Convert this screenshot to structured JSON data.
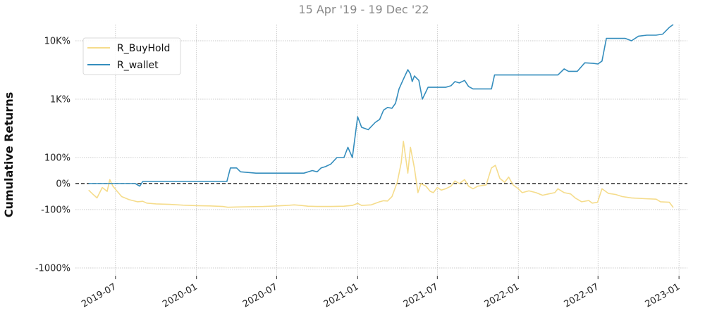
{
  "chart_data": {
    "type": "line",
    "title": "",
    "subtitle": "15 Apr '19 - 19 Dec '22",
    "ylabel": "Cumulative Returns",
    "xlabel": "",
    "y_scale": "symlog",
    "grid": true,
    "legend_position": "top-left",
    "baseline": 0,
    "x_ticks": [
      "2019-07",
      "2020-01",
      "2020-07",
      "2021-01",
      "2021-07",
      "2022-01",
      "2022-07",
      "2023-01"
    ],
    "y_ticks": [
      {
        "value": 10000,
        "label": "10K%"
      },
      {
        "value": 1000,
        "label": "1K%"
      },
      {
        "value": 100,
        "label": "100%"
      },
      {
        "value": 0,
        "label": "0%"
      },
      {
        "value": -100,
        "label": "-100%"
      },
      {
        "value": -1000,
        "label": "-1000%"
      }
    ],
    "series": [
      {
        "name": "R_BuyHold",
        "color": "#f5dc8b",
        "points": [
          [
            "2019-05-01",
            -25
          ],
          [
            "2019-05-10",
            -40
          ],
          [
            "2019-05-20",
            -55
          ],
          [
            "2019-06-01",
            -15
          ],
          [
            "2019-06-12",
            -30
          ],
          [
            "2019-06-18",
            15
          ],
          [
            "2019-06-25",
            -10
          ],
          [
            "2019-07-05",
            -30
          ],
          [
            "2019-07-15",
            -50
          ],
          [
            "2019-08-01",
            -62
          ],
          [
            "2019-08-20",
            -70
          ],
          [
            "2019-09-01",
            -68
          ],
          [
            "2019-09-10",
            -75
          ],
          [
            "2019-10-01",
            -78
          ],
          [
            "2019-11-01",
            -80
          ],
          [
            "2019-12-01",
            -83
          ],
          [
            "2020-01-01",
            -85
          ],
          [
            "2020-02-01",
            -86
          ],
          [
            "2020-03-01",
            -88
          ],
          [
            "2020-03-12",
            -91
          ],
          [
            "2020-04-01",
            -90
          ],
          [
            "2020-05-01",
            -89
          ],
          [
            "2020-06-01",
            -88
          ],
          [
            "2020-07-01",
            -86
          ],
          [
            "2020-07-25",
            -84
          ],
          [
            "2020-08-10",
            -82
          ],
          [
            "2020-08-25",
            -84
          ],
          [
            "2020-09-10",
            -87
          ],
          [
            "2020-10-01",
            -88
          ],
          [
            "2020-11-01",
            -88
          ],
          [
            "2020-12-01",
            -87
          ],
          [
            "2020-12-20",
            -84
          ],
          [
            "2021-01-01",
            -76
          ],
          [
            "2021-01-10",
            -84
          ],
          [
            "2021-02-01",
            -82
          ],
          [
            "2021-02-20",
            -70
          ],
          [
            "2021-03-01",
            -66
          ],
          [
            "2021-03-10",
            -67
          ],
          [
            "2021-03-20",
            -50
          ],
          [
            "2021-04-01",
            5
          ],
          [
            "2021-04-10",
            80
          ],
          [
            "2021-04-15",
            190
          ],
          [
            "2021-04-25",
            40
          ],
          [
            "2021-05-01",
            150
          ],
          [
            "2021-05-10",
            60
          ],
          [
            "2021-05-18",
            -35
          ],
          [
            "2021-05-25",
            0
          ],
          [
            "2021-06-05",
            -10
          ],
          [
            "2021-06-15",
            -30
          ],
          [
            "2021-06-22",
            -35
          ],
          [
            "2021-07-01",
            -15
          ],
          [
            "2021-07-10",
            -25
          ],
          [
            "2021-07-20",
            -20
          ],
          [
            "2021-08-01",
            -10
          ],
          [
            "2021-08-10",
            10
          ],
          [
            "2021-08-20",
            0
          ],
          [
            "2021-09-01",
            15
          ],
          [
            "2021-09-10",
            -10
          ],
          [
            "2021-09-20",
            -20
          ],
          [
            "2021-10-01",
            -10
          ],
          [
            "2021-10-20",
            -5
          ],
          [
            "2021-11-01",
            60
          ],
          [
            "2021-11-10",
            70
          ],
          [
            "2021-11-20",
            20
          ],
          [
            "2021-12-01",
            5
          ],
          [
            "2021-12-10",
            25
          ],
          [
            "2021-12-20",
            -5
          ],
          [
            "2022-01-01",
            -20
          ],
          [
            "2022-01-10",
            -35
          ],
          [
            "2022-01-25",
            -28
          ],
          [
            "2022-02-10",
            -35
          ],
          [
            "2022-02-25",
            -45
          ],
          [
            "2022-03-10",
            -40
          ],
          [
            "2022-03-25",
            -35
          ],
          [
            "2022-04-01",
            -20
          ],
          [
            "2022-04-15",
            -35
          ],
          [
            "2022-04-30",
            -40
          ],
          [
            "2022-05-10",
            -55
          ],
          [
            "2022-05-25",
            -70
          ],
          [
            "2022-06-10",
            -65
          ],
          [
            "2022-06-18",
            -75
          ],
          [
            "2022-06-30",
            -72
          ],
          [
            "2022-07-10",
            -20
          ],
          [
            "2022-07-25",
            -38
          ],
          [
            "2022-08-10",
            -42
          ],
          [
            "2022-08-25",
            -50
          ],
          [
            "2022-09-15",
            -55
          ],
          [
            "2022-10-15",
            -58
          ],
          [
            "2022-11-10",
            -60
          ],
          [
            "2022-11-20",
            -70
          ],
          [
            "2022-12-10",
            -72
          ],
          [
            "2022-12-19",
            -92
          ]
        ]
      },
      {
        "name": "R_wallet",
        "color": "#348dbd",
        "points": [
          [
            "2019-05-01",
            0
          ],
          [
            "2019-07-01",
            0
          ],
          [
            "2019-08-15",
            0
          ],
          [
            "2019-08-25",
            -10
          ],
          [
            "2019-09-01",
            8
          ],
          [
            "2019-11-01",
            8
          ],
          [
            "2020-01-01",
            8
          ],
          [
            "2020-03-01",
            8
          ],
          [
            "2020-03-10",
            8
          ],
          [
            "2020-03-18",
            60
          ],
          [
            "2020-04-01",
            60
          ],
          [
            "2020-04-10",
            45
          ],
          [
            "2020-05-15",
            40
          ],
          [
            "2020-07-01",
            40
          ],
          [
            "2020-08-15",
            40
          ],
          [
            "2020-09-01",
            40
          ],
          [
            "2020-09-20",
            50
          ],
          [
            "2020-10-01",
            45
          ],
          [
            "2020-10-10",
            60
          ],
          [
            "2020-10-20",
            65
          ],
          [
            "2020-11-01",
            75
          ],
          [
            "2020-11-15",
            100
          ],
          [
            "2020-12-01",
            100
          ],
          [
            "2020-12-10",
            150
          ],
          [
            "2020-12-20",
            100
          ],
          [
            "2021-01-01",
            500
          ],
          [
            "2021-01-10",
            330
          ],
          [
            "2021-01-25",
            300
          ],
          [
            "2021-02-10",
            400
          ],
          [
            "2021-02-20",
            450
          ],
          [
            "2021-03-01",
            650
          ],
          [
            "2021-03-10",
            720
          ],
          [
            "2021-03-20",
            700
          ],
          [
            "2021-03-28",
            850
          ],
          [
            "2021-04-05",
            1500
          ],
          [
            "2021-04-15",
            2200
          ],
          [
            "2021-04-25",
            3200
          ],
          [
            "2021-05-01",
            2700
          ],
          [
            "2021-05-05",
            2000
          ],
          [
            "2021-05-10",
            2500
          ],
          [
            "2021-05-20",
            2100
          ],
          [
            "2021-05-28",
            1000
          ],
          [
            "2021-06-10",
            1600
          ],
          [
            "2021-07-01",
            1600
          ],
          [
            "2021-07-20",
            1600
          ],
          [
            "2021-08-01",
            1700
          ],
          [
            "2021-08-10",
            2000
          ],
          [
            "2021-08-20",
            1900
          ],
          [
            "2021-09-01",
            2100
          ],
          [
            "2021-09-10",
            1650
          ],
          [
            "2021-09-20",
            1500
          ],
          [
            "2021-10-15",
            1500
          ],
          [
            "2021-11-01",
            1500
          ],
          [
            "2021-11-08",
            2600
          ],
          [
            "2021-12-01",
            2600
          ],
          [
            "2022-01-01",
            2600
          ],
          [
            "2022-02-01",
            2600
          ],
          [
            "2022-03-01",
            2600
          ],
          [
            "2022-04-01",
            2600
          ],
          [
            "2022-04-15",
            3300
          ],
          [
            "2022-04-25",
            3000
          ],
          [
            "2022-05-15",
            3000
          ],
          [
            "2022-06-01",
            4200
          ],
          [
            "2022-06-20",
            4100
          ],
          [
            "2022-07-01",
            4000
          ],
          [
            "2022-07-10",
            4500
          ],
          [
            "2022-07-20",
            11000
          ],
          [
            "2022-08-10",
            11000
          ],
          [
            "2022-09-01",
            11000
          ],
          [
            "2022-09-15",
            10000
          ],
          [
            "2022-10-01",
            12000
          ],
          [
            "2022-10-20",
            12500
          ],
          [
            "2022-11-10",
            12500
          ],
          [
            "2022-11-25",
            13000
          ],
          [
            "2022-12-10",
            17000
          ],
          [
            "2022-12-19",
            19000
          ]
        ]
      }
    ]
  }
}
